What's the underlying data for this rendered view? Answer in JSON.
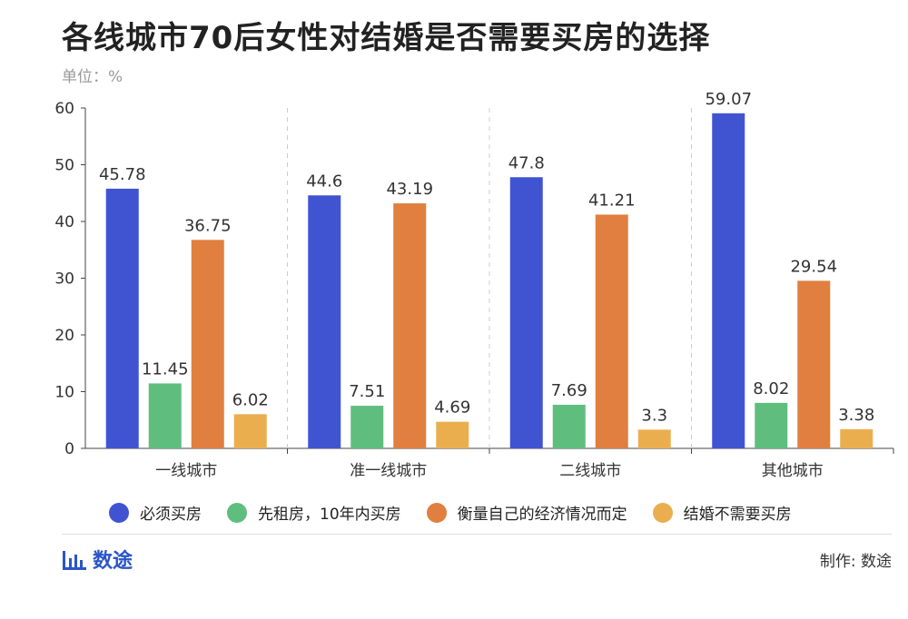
{
  "title": "各线城市70后女性对结婚是否需要买房的选择",
  "unit": "单位：%",
  "brand": "数途",
  "credit": "制作: 数途",
  "chart_data": {
    "type": "bar",
    "categories": [
      "一线城市",
      "准一线城市",
      "二线城市",
      "其他城市"
    ],
    "ylim": [
      0,
      60
    ],
    "yticks": [
      0,
      10,
      20,
      30,
      40,
      50,
      60
    ],
    "grid": false,
    "legend_position": "bottom",
    "series": [
      {
        "name": "必须买房",
        "color": "#4054d2",
        "values": [
          45.78,
          44.6,
          47.8,
          59.07
        ]
      },
      {
        "name": "先租房，10年内买房",
        "color": "#5fbe7e",
        "values": [
          11.45,
          7.51,
          7.69,
          8.02
        ]
      },
      {
        "name": "衡量自己的经济情况而定",
        "color": "#e07f3f",
        "values": [
          36.75,
          43.19,
          41.21,
          29.54
        ]
      },
      {
        "name": "结婚不需要买房",
        "color": "#ebae4f",
        "values": [
          6.02,
          4.69,
          3.3,
          3.38
        ]
      }
    ]
  }
}
